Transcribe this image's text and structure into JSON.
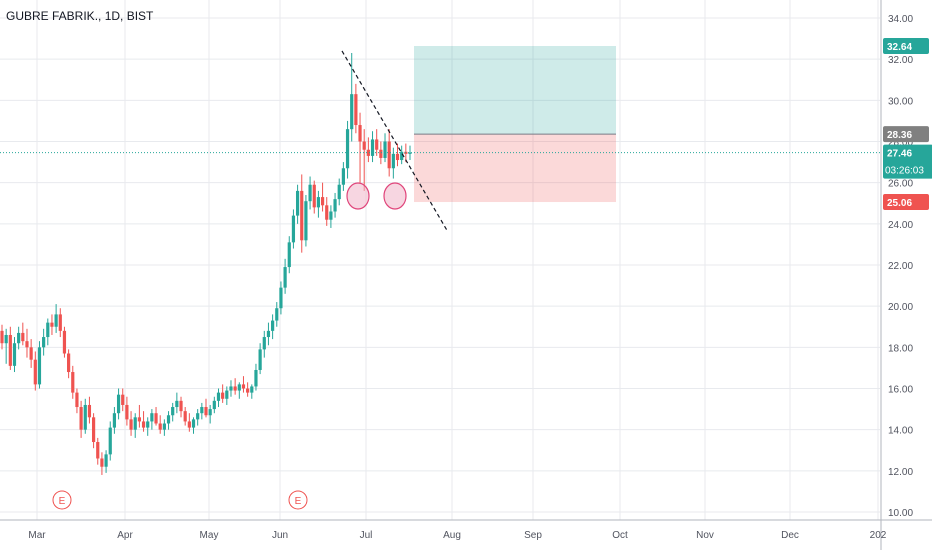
{
  "title": "GUBRE FABRIK., 1D, BIST",
  "colors": {
    "up": "#26a69a",
    "down": "#ef5350",
    "grid": "#e8eaee",
    "axis_text": "#50535e",
    "target_zone": "rgba(38,166,154,0.22)",
    "stop_zone": "rgba(239,83,80,0.22)",
    "entry_tag": "#808080",
    "stop_tag": "#ef5350",
    "current_tag": "#26a69a",
    "marker": "#ef5350",
    "circle_fill": "rgba(240,180,200,0.55)",
    "circle_stroke": "#e0457b"
  },
  "chart_data": {
    "type": "candlestick",
    "title": "GUBRE FABRIK., 1D, BIST",
    "ylim": [
      10,
      34
    ],
    "y_ticks": [
      "10.00",
      "12.00",
      "14.00",
      "16.00",
      "18.00",
      "20.00",
      "22.00",
      "24.00",
      "26.00",
      "28.00",
      "30.00",
      "32.00",
      "34.00"
    ],
    "x_ticks": [
      "Mar",
      "Apr",
      "May",
      "Jun",
      "Jul",
      "Aug",
      "Sep",
      "Oct",
      "Nov",
      "Dec",
      "202"
    ],
    "candles": [
      [
        18.8,
        19.1,
        17.9,
        18.2
      ],
      [
        18.2,
        18.9,
        17.2,
        18.6
      ],
      [
        18.6,
        19.0,
        16.9,
        17.1
      ],
      [
        17.1,
        18.5,
        16.8,
        18.2
      ],
      [
        18.2,
        19.0,
        17.9,
        18.7
      ],
      [
        18.7,
        19.2,
        18.1,
        18.3
      ],
      [
        18.3,
        18.9,
        17.5,
        18.0
      ],
      [
        18.0,
        18.4,
        17.0,
        17.4
      ],
      [
        17.4,
        17.8,
        15.9,
        16.2
      ],
      [
        16.2,
        18.3,
        16.0,
        18.0
      ],
      [
        18.0,
        18.9,
        17.6,
        18.5
      ],
      [
        18.5,
        19.4,
        18.1,
        19.2
      ],
      [
        19.2,
        19.6,
        18.6,
        19.0
      ],
      [
        19.0,
        20.1,
        18.7,
        19.6
      ],
      [
        19.6,
        19.9,
        18.5,
        18.8
      ],
      [
        18.8,
        19.0,
        17.5,
        17.7
      ],
      [
        17.7,
        17.9,
        16.5,
        16.8
      ],
      [
        16.8,
        17.1,
        15.5,
        15.8
      ],
      [
        15.8,
        16.0,
        14.8,
        15.1
      ],
      [
        15.1,
        15.4,
        13.6,
        14.0
      ],
      [
        14.0,
        15.5,
        13.8,
        15.2
      ],
      [
        15.2,
        15.6,
        14.3,
        14.6
      ],
      [
        14.6,
        14.8,
        13.1,
        13.4
      ],
      [
        13.4,
        13.6,
        12.3,
        12.6
      ],
      [
        12.6,
        12.9,
        11.8,
        12.2
      ],
      [
        12.2,
        13.0,
        11.9,
        12.8
      ],
      [
        12.8,
        14.4,
        12.5,
        14.1
      ],
      [
        14.1,
        15.1,
        13.8,
        14.8
      ],
      [
        14.8,
        16.0,
        14.5,
        15.7
      ],
      [
        15.7,
        16.0,
        14.9,
        15.2
      ],
      [
        15.2,
        15.6,
        14.2,
        14.5
      ],
      [
        14.5,
        14.9,
        13.7,
        14.0
      ],
      [
        14.0,
        14.8,
        13.6,
        14.6
      ],
      [
        14.6,
        15.2,
        14.1,
        14.4
      ],
      [
        14.4,
        14.9,
        13.9,
        14.1
      ],
      [
        14.1,
        14.6,
        13.7,
        14.4
      ],
      [
        14.4,
        15.0,
        14.0,
        14.8
      ],
      [
        14.8,
        15.1,
        14.2,
        14.3
      ],
      [
        14.3,
        14.7,
        13.8,
        14.0
      ],
      [
        14.0,
        14.5,
        13.7,
        14.3
      ],
      [
        14.3,
        14.9,
        14.0,
        14.7
      ],
      [
        14.7,
        15.3,
        14.4,
        15.1
      ],
      [
        15.1,
        15.8,
        14.8,
        15.4
      ],
      [
        15.4,
        15.6,
        14.6,
        14.9
      ],
      [
        14.9,
        15.1,
        14.2,
        14.4
      ],
      [
        14.4,
        14.8,
        13.9,
        14.1
      ],
      [
        14.1,
        14.6,
        13.8,
        14.5
      ],
      [
        14.5,
        15.0,
        14.2,
        14.8
      ],
      [
        14.8,
        15.3,
        14.5,
        15.1
      ],
      [
        15.1,
        15.5,
        14.6,
        14.7
      ],
      [
        14.7,
        15.2,
        14.3,
        15.0
      ],
      [
        15.0,
        15.6,
        14.8,
        15.4
      ],
      [
        15.4,
        16.0,
        15.1,
        15.8
      ],
      [
        15.8,
        16.2,
        15.3,
        15.5
      ],
      [
        15.5,
        16.1,
        15.2,
        15.9
      ],
      [
        15.9,
        16.4,
        15.6,
        16.1
      ],
      [
        16.1,
        16.5,
        15.7,
        15.9
      ],
      [
        15.9,
        16.3,
        15.5,
        16.2
      ],
      [
        16.2,
        16.6,
        15.8,
        16.0
      ],
      [
        16.0,
        16.3,
        15.6,
        15.8
      ],
      [
        15.8,
        16.2,
        15.5,
        16.1
      ],
      [
        16.1,
        17.2,
        15.9,
        16.9
      ],
      [
        16.9,
        18.2,
        16.7,
        17.9
      ],
      [
        17.9,
        18.8,
        17.5,
        18.5
      ],
      [
        18.5,
        19.2,
        18.1,
        18.8
      ],
      [
        18.8,
        19.6,
        18.4,
        19.3
      ],
      [
        19.3,
        20.2,
        19.0,
        19.9
      ],
      [
        19.9,
        21.2,
        19.6,
        20.9
      ],
      [
        20.9,
        22.3,
        20.6,
        21.9
      ],
      [
        21.9,
        23.4,
        21.6,
        23.1
      ],
      [
        23.1,
        24.7,
        22.8,
        24.4
      ],
      [
        24.4,
        25.9,
        24.0,
        25.6
      ],
      [
        25.6,
        26.4,
        22.6,
        23.2
      ],
      [
        23.2,
        25.4,
        22.9,
        25.1
      ],
      [
        25.1,
        26.3,
        24.7,
        25.9
      ],
      [
        25.9,
        26.1,
        24.5,
        24.8
      ],
      [
        24.8,
        25.6,
        24.3,
        25.3
      ],
      [
        25.3,
        26.0,
        24.6,
        24.9
      ],
      [
        24.9,
        25.3,
        23.9,
        24.2
      ],
      [
        24.2,
        24.9,
        23.8,
        24.6
      ],
      [
        24.6,
        25.5,
        24.3,
        25.2
      ],
      [
        25.2,
        26.2,
        24.9,
        25.9
      ],
      [
        25.9,
        27.0,
        25.6,
        26.7
      ],
      [
        26.7,
        29.0,
        26.2,
        28.6
      ],
      [
        28.6,
        32.3,
        28.0,
        30.3
      ],
      [
        30.3,
        30.8,
        28.4,
        28.8
      ],
      [
        28.8,
        29.4,
        26.0,
        28.0
      ],
      [
        28.0,
        28.6,
        25.6,
        27.6
      ],
      [
        27.6,
        28.2,
        27.0,
        27.3
      ],
      [
        27.3,
        28.5,
        27.0,
        28.1
      ],
      [
        28.1,
        28.6,
        27.3,
        27.6
      ],
      [
        27.6,
        28.0,
        26.9,
        27.2
      ],
      [
        27.2,
        28.4,
        27.0,
        28.0
      ],
      [
        28.0,
        28.6,
        26.3,
        26.7
      ],
      [
        26.7,
        27.7,
        26.2,
        27.4
      ],
      [
        27.4,
        27.9,
        26.8,
        27.1
      ],
      [
        27.1,
        27.8,
        26.9,
        27.5
      ],
      [
        27.5,
        27.9,
        27.0,
        27.4
      ],
      [
        27.4,
        27.8,
        27.1,
        27.46
      ]
    ],
    "entry_price": 28.36,
    "target_price": 32.64,
    "stop_price": 25.06,
    "current_price": 27.46,
    "countdown": "03:26:03",
    "earnings_markers": [
      "E",
      "E"
    ]
  }
}
